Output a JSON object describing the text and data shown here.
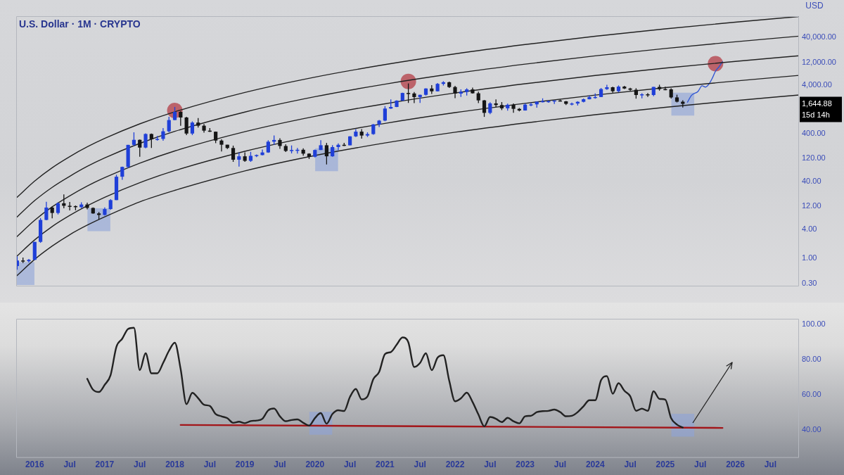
{
  "chart_data": [
    {
      "type": "candlestick",
      "title": "U.S. Dollar · 1M · CRYPTO",
      "ylabel": "USD",
      "log": true,
      "grid": false,
      "legend": false,
      "tick_labels": "y",
      "xlim": [
        "2015-09-26",
        "2026-11-28"
      ],
      "ylim": [
        0.26,
        110000
      ],
      "yticks": [
        {
          "value": 0.3,
          "label": "0.30"
        },
        {
          "value": 1,
          "label": "1.00"
        },
        {
          "value": 4,
          "label": "4.00"
        },
        {
          "value": 12,
          "label": "12.00"
        },
        {
          "value": 40,
          "label": "40.00"
        },
        {
          "value": 120,
          "label": "120.00"
        },
        {
          "value": 400,
          "label": "400.00"
        },
        {
          "value": 4000,
          "label": "4,000.00"
        },
        {
          "value": 12000,
          "label": "12,000.00"
        },
        {
          "value": 40000,
          "label": "40,000.00"
        }
      ],
      "annotations": [
        "1,644.88",
        "15d 14h"
      ],
      "x": [
        "2015-10",
        "2015-11",
        "2015-12",
        "2016-01",
        "2016-02",
        "2016-03",
        "2016-04",
        "2016-05",
        "2016-06",
        "2016-07",
        "2016-08",
        "2016-09",
        "2016-10",
        "2016-11",
        "2016-12",
        "2017-01",
        "2017-02",
        "2017-03",
        "2017-04",
        "2017-05",
        "2017-06",
        "2017-07",
        "2017-08",
        "2017-09",
        "2017-10",
        "2017-11",
        "2017-12",
        "2018-01",
        "2018-02",
        "2018-03",
        "2018-04",
        "2018-05",
        "2018-06",
        "2018-07",
        "2018-08",
        "2018-09",
        "2018-10",
        "2018-11",
        "2018-12",
        "2019-01",
        "2019-02",
        "2019-03",
        "2019-04",
        "2019-05",
        "2019-06",
        "2019-07",
        "2019-08",
        "2019-09",
        "2019-10",
        "2019-11",
        "2019-12",
        "2020-01",
        "2020-02",
        "2020-03",
        "2020-04",
        "2020-05",
        "2020-06",
        "2020-07",
        "2020-08",
        "2020-09",
        "2020-10",
        "2020-11",
        "2020-12",
        "2021-01",
        "2021-02",
        "2021-03",
        "2021-04",
        "2021-05",
        "2021-06",
        "2021-07",
        "2021-08",
        "2021-09",
        "2021-10",
        "2021-11",
        "2021-12",
        "2022-01",
        "2022-02",
        "2022-03",
        "2022-04",
        "2022-05",
        "2022-06",
        "2022-07",
        "2022-08",
        "2022-09",
        "2022-10",
        "2022-11",
        "2022-12",
        "2023-01",
        "2023-02",
        "2023-03",
        "2023-04",
        "2023-05",
        "2023-06",
        "2023-07",
        "2023-08",
        "2023-09",
        "2023-10",
        "2023-11",
        "2023-12",
        "2024-01",
        "2024-02",
        "2024-03",
        "2024-04",
        "2024-05",
        "2024-06",
        "2024-07",
        "2024-08",
        "2024-09",
        "2024-10",
        "2024-11",
        "2024-12",
        "2025-01",
        "2025-02",
        "2025-03",
        "2025-04"
      ],
      "ohlc": [
        [
          0.69,
          1.1,
          0.58,
          0.9
        ],
        [
          0.9,
          1.04,
          0.8,
          0.87
        ],
        [
          0.87,
          0.97,
          0.82,
          0.93
        ],
        [
          0.93,
          2.2,
          0.92,
          2.2
        ],
        [
          2.2,
          6.9,
          2.1,
          6.3
        ],
        [
          6.3,
          15,
          6.2,
          11.4
        ],
        [
          11.4,
          12,
          6.8,
          8.8
        ],
        [
          8.8,
          14.6,
          8.2,
          14
        ],
        [
          14,
          21.5,
          11,
          12.4
        ],
        [
          12.4,
          14.9,
          9.9,
          12.2
        ],
        [
          12.2,
          12.6,
          10,
          11.6
        ],
        [
          11.6,
          14.6,
          11.1,
          13.2
        ],
        [
          13.2,
          14.4,
          10.5,
          11.2
        ],
        [
          11.2,
          11.5,
          8.5,
          8.6
        ],
        [
          8.6,
          9.2,
          6.4,
          8
        ],
        [
          8,
          11.5,
          7.8,
          10.6
        ],
        [
          10.6,
          17,
          10.3,
          16.3
        ],
        [
          16.3,
          55,
          16.3,
          50
        ],
        [
          50,
          81,
          43,
          80
        ],
        [
          80,
          232,
          76,
          230
        ],
        [
          230,
          420,
          218,
          293
        ],
        [
          293,
          297,
          130,
          202
        ],
        [
          202,
          400,
          196,
          388
        ],
        [
          388,
          395,
          198,
          302
        ],
        [
          302,
          352,
          282,
          306
        ],
        [
          306,
          516,
          280,
          441
        ],
        [
          441,
          880,
          419,
          756
        ],
        [
          756,
          1420,
          753,
          1119
        ],
        [
          1119,
          1160,
          575,
          855
        ],
        [
          855,
          880,
          367,
          396
        ],
        [
          396,
          710,
          368,
          670
        ],
        [
          670,
          835,
          527,
          577
        ],
        [
          577,
          627,
          413,
          455
        ],
        [
          455,
          515,
          427,
          433
        ],
        [
          433,
          436,
          250,
          283
        ],
        [
          283,
          300,
          167,
          232
        ],
        [
          232,
          232,
          188,
          198
        ],
        [
          198,
          222,
          102,
          113
        ],
        [
          113,
          159,
          81,
          133
        ],
        [
          133,
          161,
          102,
          107
        ],
        [
          107,
          165,
          102,
          136
        ],
        [
          136,
          145,
          128,
          141
        ],
        [
          141,
          184,
          139,
          160
        ],
        [
          160,
          287,
          157,
          268
        ],
        [
          268,
          362,
          232,
          291
        ],
        [
          291,
          317,
          190,
          218
        ],
        [
          218,
          237,
          163,
          172
        ],
        [
          172,
          224,
          153,
          180
        ],
        [
          180,
          198,
          152,
          182
        ],
        [
          182,
          195,
          137,
          151
        ],
        [
          151,
          154,
          117,
          130
        ],
        [
          130,
          184,
          126,
          180
        ],
        [
          180,
          288,
          180,
          226
        ],
        [
          226,
          253,
          90,
          133
        ],
        [
          133,
          227,
          130,
          207
        ],
        [
          207,
          248,
          178,
          231
        ],
        [
          231,
          253,
          217,
          225
        ],
        [
          225,
          349,
          225,
          346
        ],
        [
          346,
          490,
          335,
          434
        ],
        [
          434,
          488,
          310,
          360
        ],
        [
          360,
          420,
          336,
          386
        ],
        [
          386,
          623,
          373,
          614
        ],
        [
          614,
          760,
          540,
          737
        ],
        [
          737,
          1475,
          715,
          1314
        ],
        [
          1314,
          2040,
          1290,
          1417
        ],
        [
          1417,
          1945,
          1400,
          1919
        ],
        [
          1919,
          2797,
          1900,
          2773
        ],
        [
          2773,
          4380,
          1720,
          2706
        ],
        [
          2706,
          2890,
          1700,
          2275
        ],
        [
          2275,
          2550,
          1720,
          2536
        ],
        [
          2536,
          3470,
          2450,
          3433
        ],
        [
          3433,
          4030,
          2650,
          3001
        ],
        [
          3001,
          4460,
          2980,
          4288
        ],
        [
          4288,
          4870,
          3960,
          4631
        ],
        [
          4631,
          4780,
          3525,
          3682
        ],
        [
          3682,
          3900,
          2160,
          2688
        ],
        [
          2688,
          3285,
          2300,
          2919
        ],
        [
          2919,
          3480,
          2450,
          3282
        ],
        [
          3282,
          3580,
          2700,
          2730
        ],
        [
          2730,
          2960,
          1700,
          1942
        ],
        [
          1942,
          1980,
          880,
          1067
        ],
        [
          1067,
          1785,
          1000,
          1680
        ],
        [
          1680,
          2030,
          1420,
          1554
        ],
        [
          1554,
          1790,
          1220,
          1328
        ],
        [
          1328,
          1665,
          1190,
          1573
        ],
        [
          1573,
          1680,
          1075,
          1295
        ],
        [
          1295,
          1352,
          1150,
          1196
        ],
        [
          1196,
          1680,
          1190,
          1585
        ],
        [
          1585,
          1740,
          1460,
          1605
        ],
        [
          1605,
          1860,
          1370,
          1822
        ],
        [
          1822,
          2140,
          1760,
          1870
        ],
        [
          1870,
          1930,
          1740,
          1874
        ],
        [
          1874,
          1935,
          1630,
          1934
        ],
        [
          1934,
          2030,
          1840,
          1856
        ],
        [
          1856,
          1880,
          1550,
          1645
        ],
        [
          1645,
          1750,
          1530,
          1671
        ],
        [
          1671,
          1865,
          1520,
          1815
        ],
        [
          1815,
          2130,
          1770,
          2051
        ],
        [
          2051,
          2445,
          2030,
          2281
        ],
        [
          2281,
          2715,
          2100,
          2283
        ],
        [
          2283,
          3520,
          2270,
          3340
        ],
        [
          3340,
          4090,
          3210,
          3645
        ],
        [
          3645,
          3730,
          2810,
          3015
        ],
        [
          3015,
          3980,
          2860,
          3760
        ],
        [
          3760,
          3890,
          3360,
          3435
        ],
        [
          3435,
          3560,
          3080,
          3230
        ],
        [
          3230,
          3480,
          2110,
          2515
        ],
        [
          2515,
          2730,
          2150,
          2600
        ],
        [
          2600,
          2770,
          2300,
          2515
        ],
        [
          2515,
          3720,
          2360,
          3705
        ],
        [
          3705,
          4110,
          3100,
          3335
        ],
        [
          3335,
          3745,
          3155,
          3300
        ],
        [
          3300,
          3450,
          2120,
          2240
        ],
        [
          2240,
          2550,
          1760,
          1822
        ],
        [
          1822,
          1955,
          1385,
          1644.88
        ]
      ],
      "colors": [
        "#1f3fd8",
        "#151515",
        "#1f3fd8",
        "#1f3fd8",
        "#1f3fd8",
        "#1f3fd8",
        "#151515",
        "#1f3fd8",
        "#151515",
        "#151515",
        "#151515",
        "#1f3fd8",
        "#151515",
        "#151515",
        "#151515",
        "#1f3fd8",
        "#1f3fd8",
        "#1f3fd8",
        "#1f3fd8",
        "#1f3fd8",
        "#1f3fd8",
        "#151515",
        "#1f3fd8",
        "#151515",
        "#1f3fd8",
        "#1f3fd8",
        "#1f3fd8",
        "#1f3fd8",
        "#151515",
        "#151515",
        "#1f3fd8",
        "#151515",
        "#151515",
        "#151515",
        "#151515",
        "#151515",
        "#151515",
        "#151515",
        "#1f3fd8",
        "#151515",
        "#1f3fd8",
        "#1f3fd8",
        "#1f3fd8",
        "#1f3fd8",
        "#1f3fd8",
        "#151515",
        "#151515",
        "#1f3fd8",
        "#1f3fd8",
        "#151515",
        "#151515",
        "#1f3fd8",
        "#1f3fd8",
        "#151515",
        "#1f3fd8",
        "#1f3fd8",
        "#151515",
        "#1f3fd8",
        "#1f3fd8",
        "#151515",
        "#1f3fd8",
        "#1f3fd8",
        "#1f3fd8",
        "#1f3fd8",
        "#1f3fd8",
        "#1f3fd8",
        "#1f3fd8",
        "#151515",
        "#151515",
        "#1f3fd8",
        "#1f3fd8",
        "#151515",
        "#1f3fd8",
        "#1f3fd8",
        "#151515",
        "#151515",
        "#1f3fd8",
        "#1f3fd8",
        "#151515",
        "#151515",
        "#151515",
        "#1f3fd8",
        "#151515",
        "#151515",
        "#1f3fd8",
        "#151515",
        "#151515",
        "#1f3fd8",
        "#1f3fd8",
        "#1f3fd8",
        "#1f3fd8",
        "#1f3fd8",
        "#1f3fd8",
        "#151515",
        "#151515",
        "#1f3fd8",
        "#1f3fd8",
        "#1f3fd8",
        "#1f3fd8",
        "#1f3fd8",
        "#1f3fd8",
        "#1f3fd8",
        "#151515",
        "#1f3fd8",
        "#151515",
        "#151515",
        "#151515",
        "#1f3fd8",
        "#151515",
        "#1f3fd8",
        "#151515",
        "#151515",
        "#151515",
        "#151515",
        "#151515"
      ],
      "series": [
        {
          "type": "line",
          "color": "#222222",
          "x": [
            "2015-10",
            "2016-01",
            "2016-04",
            "2016-07",
            "2016-10",
            "2017-01",
            "2017-07",
            "2018-01",
            "2019-01",
            "2020-01",
            "2021-01",
            "2022-01",
            "2023-01",
            "2024-01",
            "2025-01",
            "2026-01",
            "2026-11-28"
          ],
          "values": [
            18.7,
            40.6,
            77,
            131,
            209,
            314,
            631,
            1125,
            2843,
            5927,
            10823,
            18125,
            28261,
            42048,
            59958,
            82593,
            108148
          ]
        },
        {
          "type": "line",
          "color": "#222222",
          "x": [
            "2015-10",
            "2016-01",
            "2016-04",
            "2016-07",
            "2016-10",
            "2017-01",
            "2017-07",
            "2018-01",
            "2019-01",
            "2020-01",
            "2021-01",
            "2022-01",
            "2023-01",
            "2024-01",
            "2025-01",
            "2026-01",
            "2026-11-28"
          ],
          "values": [
            7.3,
            15.9,
            30,
            51,
            82,
            123,
            247,
            440,
            1111,
            2316,
            4229,
            7081,
            11041,
            16428,
            23425,
            32268,
            42252
          ]
        },
        {
          "type": "line",
          "color": "#222222",
          "x": [
            "2015-10",
            "2016-01",
            "2016-04",
            "2016-07",
            "2016-10",
            "2017-01",
            "2017-07",
            "2018-01",
            "2019-01",
            "2020-01",
            "2021-01",
            "2022-01",
            "2023-01",
            "2024-01",
            "2025-01",
            "2026-01",
            "2026-11-28"
          ],
          "values": [
            2.86,
            6.2,
            11.8,
            20,
            32,
            48,
            96,
            172,
            434,
            904,
            1652,
            2766,
            4312,
            6416,
            9149,
            12603,
            16503
          ]
        },
        {
          "type": "line",
          "color": "#222222",
          "x": [
            "2015-10",
            "2016-01",
            "2016-04",
            "2016-07",
            "2016-10",
            "2017-01",
            "2017-07",
            "2018-01",
            "2019-01",
            "2020-01",
            "2021-01",
            "2022-01",
            "2023-01",
            "2024-01",
            "2025-01",
            "2026-01",
            "2026-11-28"
          ],
          "values": [
            1.12,
            2.42,
            4.6,
            7.8,
            12.4,
            18.7,
            37.6,
            67,
            169,
            353,
            645,
            1080,
            1684,
            2506,
            3574,
            4923,
            6446
          ]
        },
        {
          "type": "line",
          "color": "#222222",
          "x": [
            "2015-10",
            "2016-01",
            "2016-04",
            "2016-07",
            "2016-10",
            "2017-01",
            "2017-07",
            "2018-01",
            "2019-01",
            "2020-01",
            "2021-01",
            "2022-01",
            "2023-01",
            "2024-01",
            "2025-01",
            "2026-01",
            "2026-11-28"
          ],
          "values": [
            0.44,
            0.95,
            1.8,
            3.1,
            4.9,
            7.3,
            15,
            26,
            66,
            138,
            252,
            422,
            658,
            979,
            1396,
            1923,
            2518
          ]
        },
        {
          "type": "line",
          "color": "#2f55d4",
          "x": [
            "2025-04-25",
            "2025-05-16",
            "2025-06-19",
            "2025-07-10",
            "2025-07-28",
            "2025-08-16",
            "2025-09-01",
            "2025-09-19",
            "2025-10-07",
            "2025-10-25"
          ],
          "values": [
            1780,
            2480,
            2980,
            3910,
            3680,
            4290,
            5460,
            7850,
            9700,
            12360
          ]
        },
        {
          "type": "scatter",
          "color": "#b5464f",
          "marker": "circle",
          "x": [
            "2018-01",
            "2021-05",
            "2025-09-19"
          ],
          "values": [
            1200,
            4830,
            11300
          ]
        },
        {
          "type": "scatter",
          "color": "#8ea3d9",
          "marker": "square",
          "x": [
            "2015-11",
            "2016-12",
            "2020-03",
            "2025-04"
          ],
          "values": [
            0.48,
            6.35,
            113,
            1623
          ]
        }
      ]
    },
    {
      "type": "line",
      "grid": false,
      "legend": false,
      "xlim": [
        "2015-09-26",
        "2026-11-28"
      ],
      "ylim": [
        24,
        103
      ],
      "xticks": [
        {
          "value": "2016-01",
          "label": "2016"
        },
        {
          "value": "2016-07",
          "label": "Jul"
        },
        {
          "value": "2017-01",
          "label": "2017"
        },
        {
          "value": "2017-07",
          "label": "Jul"
        },
        {
          "value": "2018-01",
          "label": "2018"
        },
        {
          "value": "2018-07",
          "label": "Jul"
        },
        {
          "value": "2019-01",
          "label": "2019"
        },
        {
          "value": "2019-07",
          "label": "Jul"
        },
        {
          "value": "2020-01",
          "label": "2020"
        },
        {
          "value": "2020-07",
          "label": "Jul"
        },
        {
          "value": "2021-01",
          "label": "2021"
        },
        {
          "value": "2021-07",
          "label": "Jul"
        },
        {
          "value": "2022-01",
          "label": "2022"
        },
        {
          "value": "2022-07",
          "label": "Jul"
        },
        {
          "value": "2023-01",
          "label": "2023"
        },
        {
          "value": "2023-07",
          "label": "Jul"
        },
        {
          "value": "2024-01",
          "label": "2024"
        },
        {
          "value": "2024-07",
          "label": "Jul"
        },
        {
          "value": "2025-01",
          "label": "2025"
        },
        {
          "value": "2025-07",
          "label": "Jul"
        },
        {
          "value": "2026-01",
          "label": "2026"
        },
        {
          "value": "2026-07",
          "label": "Jul"
        }
      ],
      "yticks": [
        {
          "value": 40,
          "label": "40.00"
        },
        {
          "value": 60,
          "label": "60.00"
        },
        {
          "value": 80,
          "label": "80.00"
        },
        {
          "value": 100,
          "label": "100.00"
        }
      ],
      "series": [
        {
          "color": "#222222",
          "x": [
            "2016-10",
            "2016-11",
            "2016-12",
            "2017-01",
            "2017-02",
            "2017-03",
            "2017-04",
            "2017-05",
            "2017-06",
            "2017-07",
            "2017-08",
            "2017-09",
            "2017-10",
            "2017-11",
            "2017-12",
            "2018-01",
            "2018-02",
            "2018-03",
            "2018-04",
            "2018-05",
            "2018-06",
            "2018-07",
            "2018-08",
            "2018-09",
            "2018-10",
            "2018-11",
            "2018-12",
            "2019-01",
            "2019-02",
            "2019-03",
            "2019-04",
            "2019-05",
            "2019-06",
            "2019-07",
            "2019-08",
            "2019-09",
            "2019-10",
            "2019-11",
            "2019-12",
            "2020-01",
            "2020-02",
            "2020-03",
            "2020-04",
            "2020-05",
            "2020-06",
            "2020-07",
            "2020-08",
            "2020-09",
            "2020-10",
            "2020-11",
            "2020-12",
            "2021-01",
            "2021-02",
            "2021-03",
            "2021-04",
            "2021-05",
            "2021-06",
            "2021-07",
            "2021-08",
            "2021-09",
            "2021-10",
            "2021-11",
            "2021-12",
            "2022-01",
            "2022-02",
            "2022-03",
            "2022-04",
            "2022-05",
            "2022-06",
            "2022-07",
            "2022-08",
            "2022-09",
            "2022-10",
            "2022-11",
            "2022-12",
            "2023-01",
            "2023-02",
            "2023-03",
            "2023-04",
            "2023-05",
            "2023-06",
            "2023-07",
            "2023-08",
            "2023-09",
            "2023-10",
            "2023-11",
            "2023-12",
            "2024-01",
            "2024-02",
            "2024-03",
            "2024-04",
            "2024-05",
            "2024-06",
            "2024-07",
            "2024-08",
            "2024-09",
            "2024-10",
            "2024-11",
            "2024-12",
            "2025-01",
            "2025-02",
            "2025-03",
            "2025-04"
          ],
          "values": [
            68.9,
            62.7,
            61.4,
            65.5,
            71.0,
            87.1,
            91.7,
            97.2,
            97.9,
            73.8,
            83.4,
            72.0,
            72.0,
            77.9,
            84.8,
            89.4,
            74.4,
            54.5,
            60.9,
            57.9,
            54.2,
            53.5,
            48.9,
            47.6,
            46.5,
            43.9,
            44.5,
            43.7,
            44.9,
            45.2,
            46.2,
            51.0,
            52.0,
            47.6,
            44.8,
            45.5,
            45.8,
            43.9,
            42.3,
            46.6,
            49.4,
            43.4,
            48.9,
            51.0,
            50.6,
            58.6,
            63.1,
            57.2,
            58.9,
            68.7,
            72.8,
            83.0,
            84.1,
            88.3,
            92.4,
            89.6,
            75.6,
            77.9,
            83.4,
            73.8,
            80.9,
            82.3,
            67.8,
            56.1,
            57.8,
            61.0,
            55.7,
            48.6,
            41.9,
            47.2,
            46.2,
            44.3,
            46.7,
            44.8,
            43.6,
            47.6,
            47.9,
            50.0,
            50.5,
            50.7,
            51.4,
            50.0,
            47.6,
            47.9,
            50.0,
            53.3,
            56.7,
            56.7,
            68.1,
            70.4,
            60.4,
            66.4,
            62.1,
            59.0,
            50.7,
            51.9,
            50.7,
            61.8,
            57.5,
            57.1,
            46.5,
            42.9,
            41.2
          ]
        },
        {
          "color": "#a3161a",
          "x": [
            "2018-02",
            "2025-10-25"
          ],
          "values": [
            42.7,
            41.0
          ]
        },
        {
          "type": "scatter",
          "color": "#8ea3d9",
          "marker": "square",
          "x": [
            "2020-02",
            "2025-04"
          ],
          "values": [
            43.6,
            42.5
          ]
        }
      ]
    }
  ]
}
